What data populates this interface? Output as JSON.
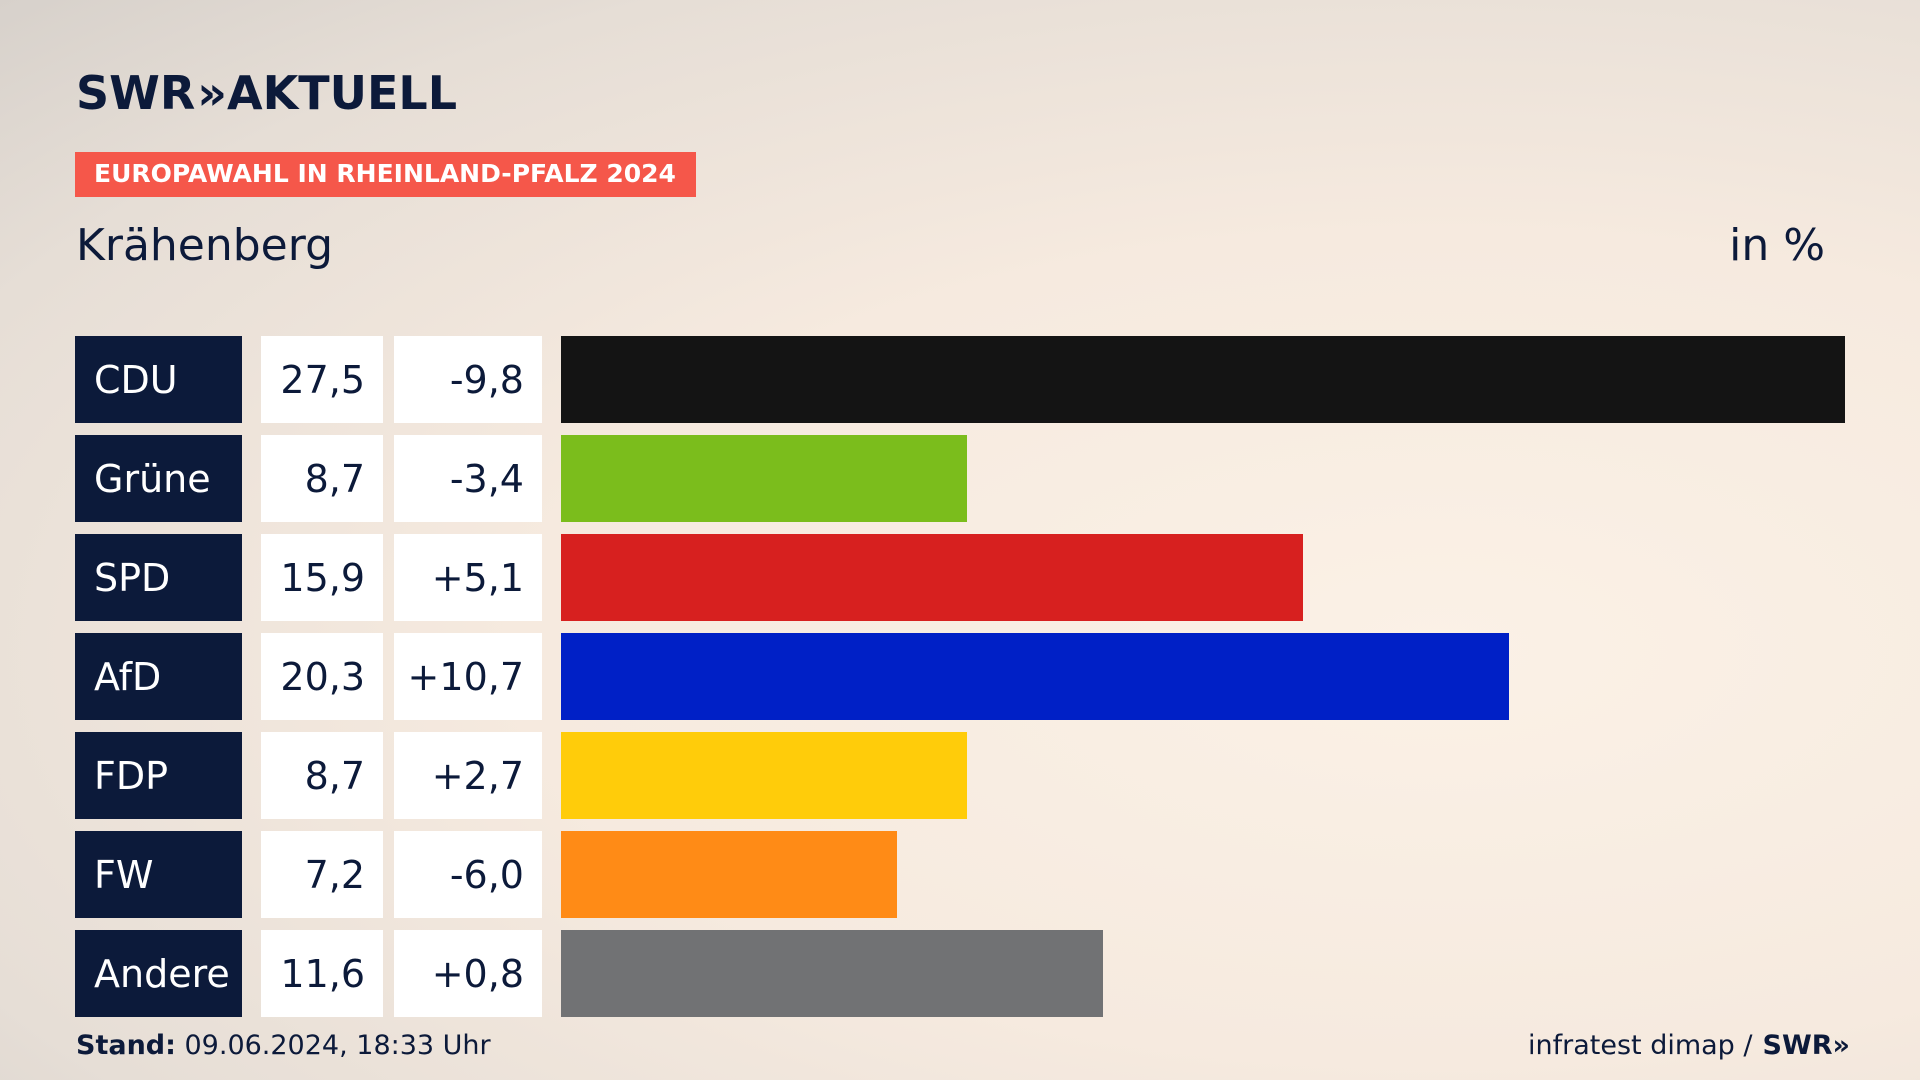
{
  "brand": {
    "name": "SWR",
    "chevrons": "»",
    "product": "AKTUELL"
  },
  "tag": "EUROPAWAHL IN RHEINLAND-PFALZ 2024",
  "region": "Krähenberg",
  "unit": "in %",
  "footer": {
    "stand_label": "Stand:",
    "stand_value": " 09.06.2024, 18:33 Uhr",
    "source": "infratest dimap /",
    "source_brand": "SWR",
    "source_chevrons": "»"
  },
  "chart_data": {
    "type": "bar",
    "orientation": "horizontal",
    "categories": [
      "CDU",
      "Grüne",
      "SPD",
      "AfD",
      "FDP",
      "FW",
      "Andere"
    ],
    "values": [
      27.5,
      8.7,
      15.9,
      20.3,
      8.7,
      7.2,
      11.6
    ],
    "value_labels": [
      "27,5",
      "8,7",
      "15,9",
      "20,3",
      "8,7",
      "7,2",
      "11,6"
    ],
    "diff_labels": [
      "-9,8",
      "-3,4",
      "+5,1",
      "+10,7",
      "+2,7",
      "-6,0",
      "+0,8"
    ],
    "diffs": [
      -9.8,
      -3.4,
      5.1,
      10.7,
      2.7,
      -6.0,
      0.8
    ],
    "colors": [
      "#141414",
      "#7bbd1c",
      "#d7201f",
      "#0020c6",
      "#ffcc0a",
      "#ff8b16",
      "#717274"
    ],
    "xlim": [
      0,
      27.5
    ],
    "grid": false
  }
}
